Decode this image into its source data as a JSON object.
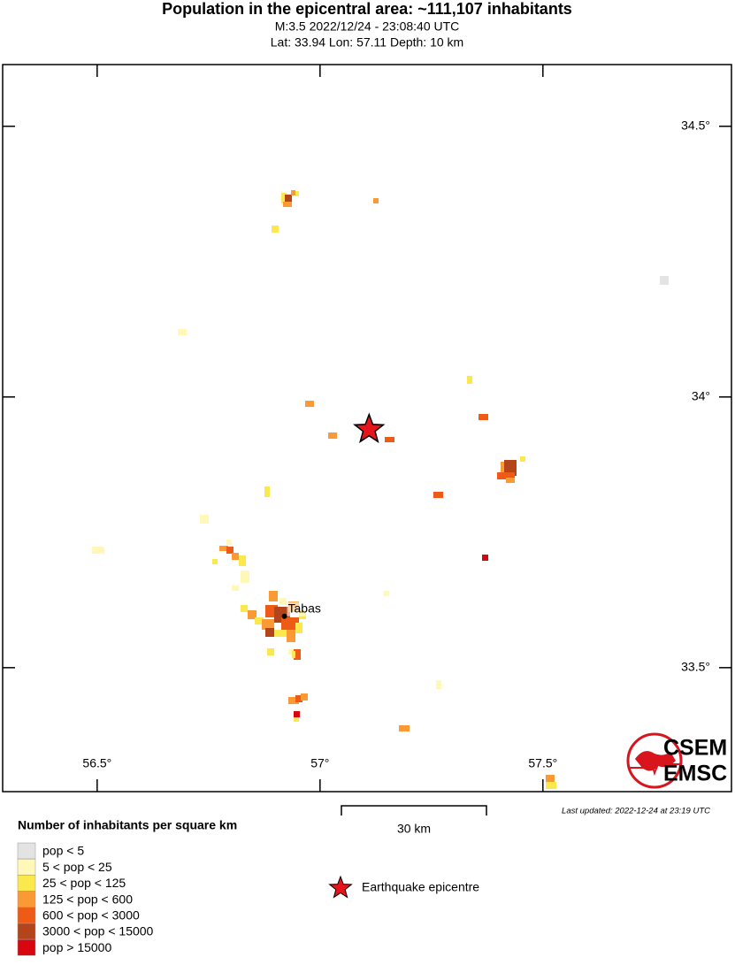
{
  "map": {
    "title": "Population in the epicentral area: ~111,107 inhabitants",
    "subtitle": "M:3.5 2022/12/24 - 23:08:40 UTC",
    "subtitle2": "Lat: 33.94 Lon: 57.11 Depth: 10 km",
    "xlim": [
      56.288,
      57.923
    ],
    "ylim": [
      33.271,
      34.614
    ],
    "xticks": [
      {
        "value": 56.5,
        "label": "56.5°"
      },
      {
        "value": 57,
        "label": "57°"
      },
      {
        "value": 57.5,
        "label": "57.5°"
      }
    ],
    "yticks": [
      {
        "value": 34.5,
        "label": "34.5°"
      },
      {
        "value": 34,
        "label": "34°"
      },
      {
        "value": 33.5,
        "label": "33.5°"
      }
    ],
    "epicenter": {
      "lat": 33.94,
      "lon": 57.11,
      "color": "#e8141c"
    },
    "cities": [
      {
        "name": "Tabas",
        "lon": 56.92,
        "lat": 33.595
      }
    ],
    "scale_bar": "30 km",
    "last_updated": "Last updated: 2022-12-24 at 23:19 UTC",
    "logo": [
      "CSEM",
      "EMSC"
    ],
    "legend": {
      "title": "Number of inhabitants per square km",
      "entries": [
        {
          "label": "pop < 5",
          "color": "#e3e3e3"
        },
        {
          "label": "5 < pop < 25",
          "color": "#fff8b8"
        },
        {
          "label": "25 < pop < 125",
          "color": "#fbe84c"
        },
        {
          "label": "125 < pop < 600",
          "color": "#fb9a34"
        },
        {
          "label": "600 < pop < 3000",
          "color": "#ee5b16"
        },
        {
          "label": "3000 < pop < 15000",
          "color": "#b4451a"
        },
        {
          "label": "pop > 15000",
          "color": "#d8070f"
        }
      ],
      "epicentre_label": "Earthquake epicentre"
    }
  }
}
